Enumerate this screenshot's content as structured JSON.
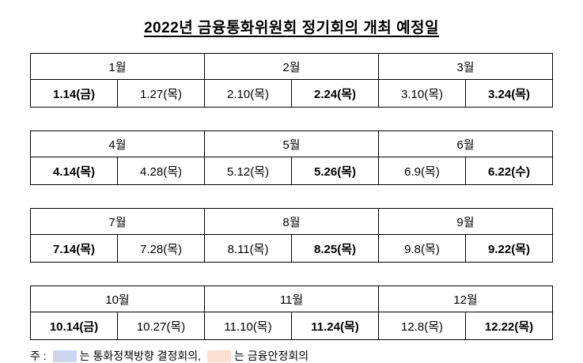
{
  "title": "2022년 금융통화위원회 정기회의 개최 예정일",
  "colors": {
    "policy_highlight": "#ccd5eb",
    "stability_highlight": "#fcdfd0"
  },
  "groups": [
    {
      "months": [
        {
          "label": "1월",
          "dates": [
            {
              "text": "1.14(금)",
              "type": "policy"
            },
            {
              "text": "1.27(목)",
              "type": "plain"
            }
          ]
        },
        {
          "label": "2월",
          "dates": [
            {
              "text": "2.10(목)",
              "type": "plain"
            },
            {
              "text": "2.24(목)",
              "type": "policy"
            }
          ]
        },
        {
          "label": "3월",
          "dates": [
            {
              "text": "3.10(목)",
              "type": "plain"
            },
            {
              "text": "3.24(목)",
              "type": "stability"
            }
          ]
        }
      ]
    },
    {
      "months": [
        {
          "label": "4월",
          "dates": [
            {
              "text": "4.14(목)",
              "type": "policy"
            },
            {
              "text": "4.28(목)",
              "type": "plain"
            }
          ]
        },
        {
          "label": "5월",
          "dates": [
            {
              "text": "5.12(목)",
              "type": "plain"
            },
            {
              "text": "5.26(목)",
              "type": "policy"
            }
          ]
        },
        {
          "label": "6월",
          "dates": [
            {
              "text": "6.9(목)",
              "type": "plain"
            },
            {
              "text": "6.22(수)",
              "type": "stability"
            }
          ]
        }
      ]
    },
    {
      "months": [
        {
          "label": "7월",
          "dates": [
            {
              "text": "7.14(목)",
              "type": "policy"
            },
            {
              "text": "7.28(목)",
              "type": "plain"
            }
          ]
        },
        {
          "label": "8월",
          "dates": [
            {
              "text": "8.11(목)",
              "type": "plain"
            },
            {
              "text": "8.25(목)",
              "type": "policy"
            }
          ]
        },
        {
          "label": "9월",
          "dates": [
            {
              "text": "9.8(목)",
              "type": "plain"
            },
            {
              "text": "9.22(목)",
              "type": "stability"
            }
          ]
        }
      ]
    },
    {
      "months": [
        {
          "label": "10월",
          "dates": [
            {
              "text": "10.14(금)",
              "type": "policy"
            },
            {
              "text": "10.27(목)",
              "type": "plain"
            }
          ]
        },
        {
          "label": "11월",
          "dates": [
            {
              "text": "11.10(목)",
              "type": "plain"
            },
            {
              "text": "11.24(목)",
              "type": "policy"
            }
          ]
        },
        {
          "label": "12월",
          "dates": [
            {
              "text": "12.8(목)",
              "type": "plain"
            },
            {
              "text": "12.22(목)",
              "type": "stability"
            }
          ]
        }
      ]
    }
  ],
  "legend": {
    "prefix": "주 :",
    "policy_text": "는 통화정책방향 결정회의,",
    "stability_text": "는 금융안정회의"
  }
}
